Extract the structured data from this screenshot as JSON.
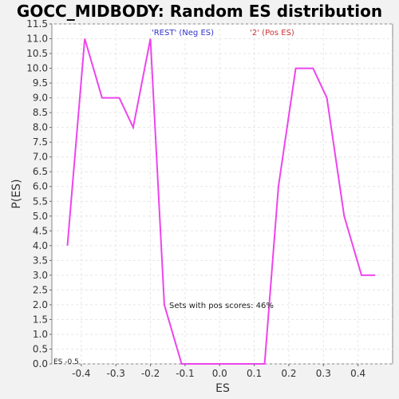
{
  "chart_data": {
    "type": "line",
    "title": "GOCC_MIDBODY: Random ES distribution",
    "xlabel": "ES",
    "ylabel": "P(ES)",
    "xlim": [
      -0.485,
      0.5
    ],
    "ylim": [
      0.0,
      11.5
    ],
    "x_ticks": [
      -0.4,
      -0.3,
      -0.2,
      -0.1,
      0.0,
      0.1,
      0.2,
      0.3,
      0.4
    ],
    "x_tick_labels": [
      "-0.4",
      "-0.3",
      "-0.2",
      "-0.1",
      "0.0",
      "0.1",
      "0.2",
      "0.3",
      "0.4"
    ],
    "y_ticks": [
      0.0,
      0.5,
      1.0,
      1.5,
      2.0,
      2.5,
      3.0,
      3.5,
      4.0,
      4.5,
      5.0,
      5.5,
      6.0,
      6.5,
      7.0,
      7.5,
      8.0,
      8.5,
      9.0,
      9.5,
      10.0,
      10.5,
      11.0,
      11.5
    ],
    "y_tick_labels": [
      "0.0",
      "0.5",
      "1.0",
      "1.5",
      "2.0",
      "2.5",
      "3.0",
      "3.5",
      "4.0",
      "4.5",
      "5.0",
      "5.5",
      "6.0",
      "6.5",
      "7.0",
      "7.5",
      "8.0",
      "8.5",
      "9.0",
      "9.5",
      "10.0",
      "10.5",
      "11.0",
      "11.5"
    ],
    "grid": true,
    "legend": [
      {
        "label": "'REST' (Neg ES)",
        "color": "#3333cc"
      },
      {
        "label": "'2' (Pos ES)",
        "color": "#cc3333"
      }
    ],
    "series": [
      {
        "name": "Random ES distribution",
        "color": "#ee44ee",
        "x": [
          -0.44,
          -0.39,
          -0.34,
          -0.29,
          -0.25,
          -0.2,
          -0.16,
          -0.11,
          0.0,
          0.13,
          0.17,
          0.22,
          0.27,
          0.31,
          0.36,
          0.41,
          0.45
        ],
        "y": [
          4.0,
          11.0,
          9.0,
          9.0,
          8.0,
          11.0,
          2.0,
          0.0,
          0.0,
          0.0,
          6.0,
          10.0,
          10.0,
          9.0,
          5.0,
          3.0,
          3.0
        ]
      }
    ],
    "annotations": {
      "pos_scores": "Sets with pos scores: 46%",
      "es_marker": "ES -0.5"
    }
  }
}
